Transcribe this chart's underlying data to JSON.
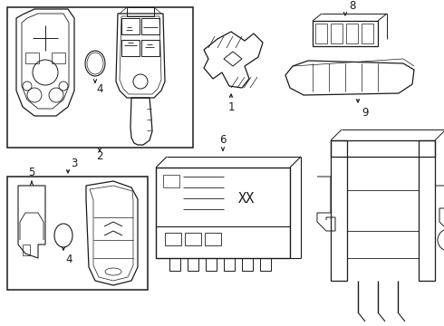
{
  "bg_color": "#ffffff",
  "line_color": "#1a1a1a",
  "fig_width": 4.9,
  "fig_height": 3.6,
  "dpi": 100,
  "label_fontsize": 8.5
}
